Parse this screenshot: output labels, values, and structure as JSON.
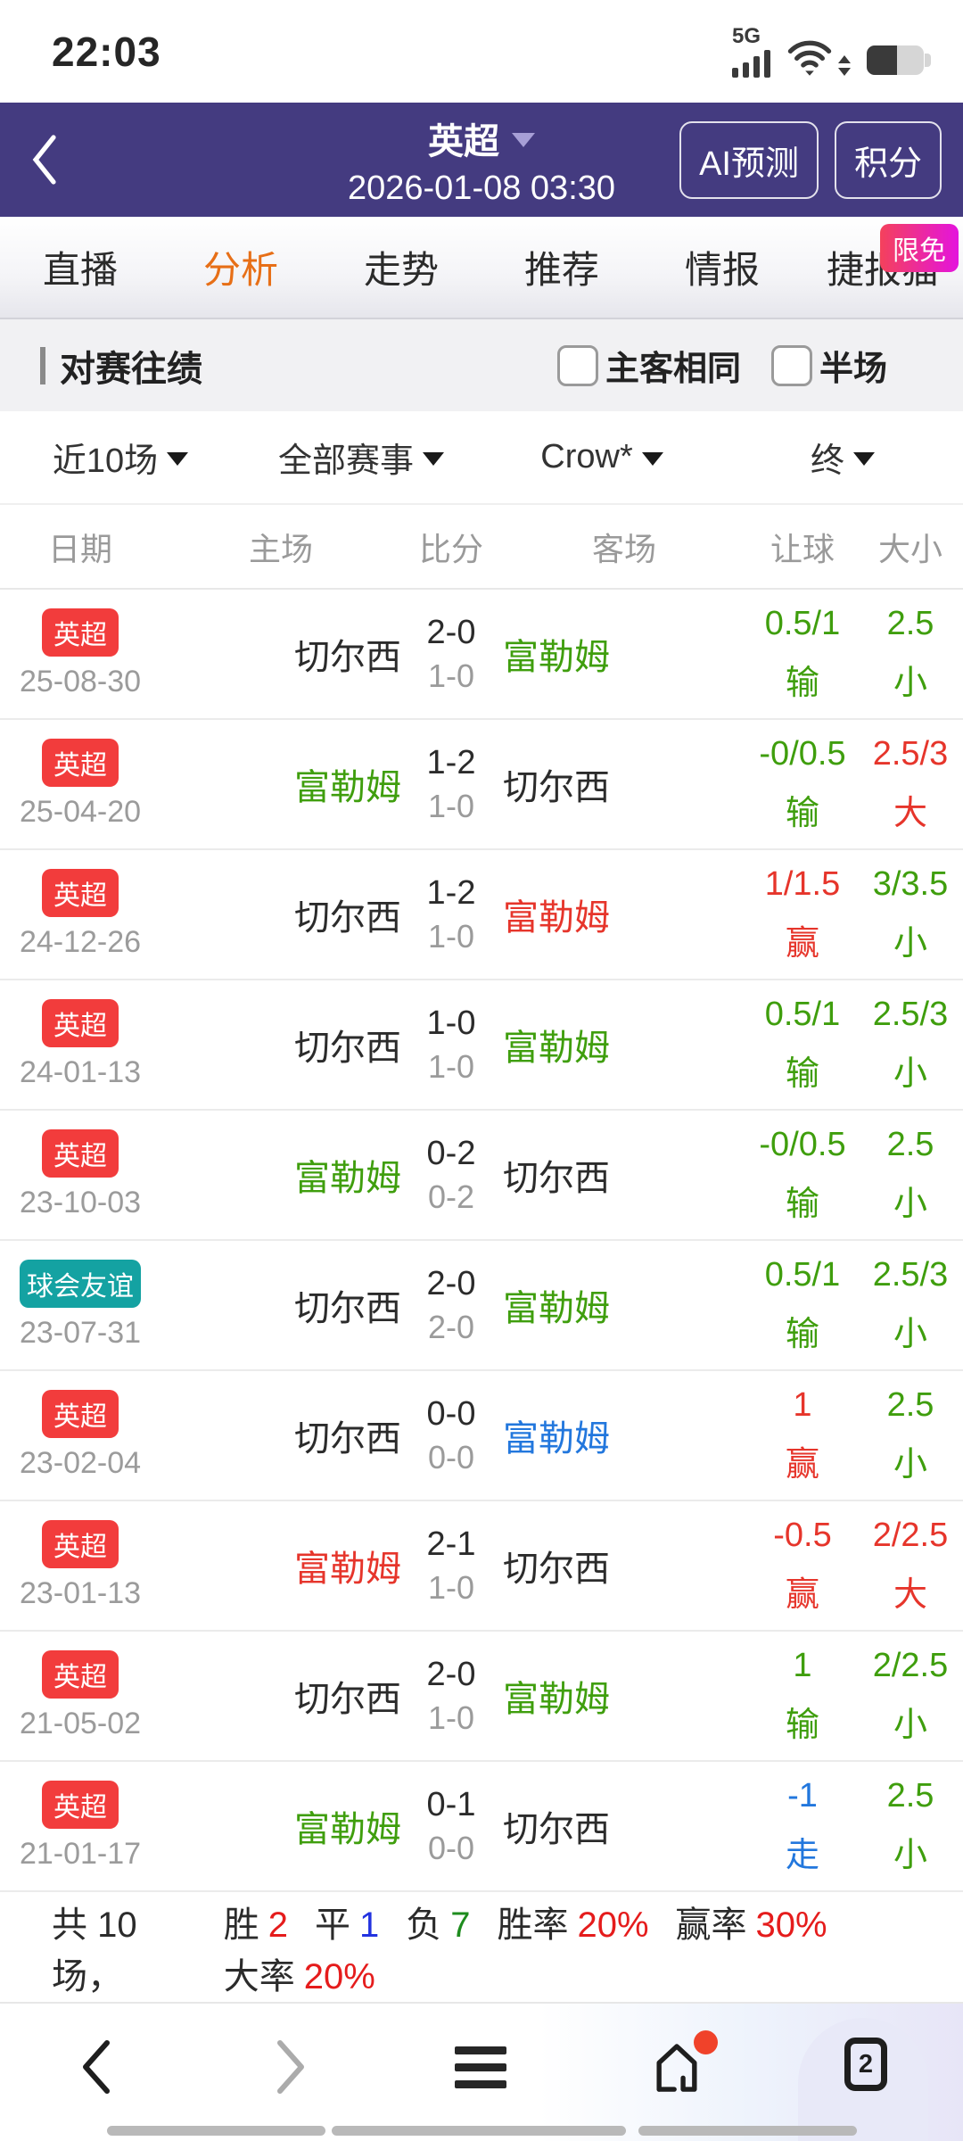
{
  "colors": {
    "green": "#3f9e0d",
    "red": "#e6352b",
    "blue": "#2277dd",
    "dark": "#2b2b2b",
    "sum_red": "#e51c1c",
    "sum_blue": "#2333e0",
    "sum_green": "#1e8c1e",
    "badge_red": "#f23c3c",
    "badge_teal": "#14a2a2",
    "accent_orange": "#e76f17",
    "header_purple": "#443b80",
    "limit_pink": "#f036b0"
  },
  "status_bar": {
    "time": "22:03",
    "network_label": "5G",
    "icons": [
      "signal-icon",
      "wifi-icon",
      "battery-icon"
    ]
  },
  "header": {
    "league": "英超",
    "kickoff": "2026-01-08 03:30",
    "buttons": [
      {
        "label": "AI预测"
      },
      {
        "label": "积分"
      }
    ]
  },
  "tabs": {
    "items": [
      "直播",
      "分析",
      "走势",
      "推荐",
      "情报",
      "捷报猫"
    ],
    "selected": "分析",
    "corner_badge": "限免"
  },
  "section": {
    "title": "对赛往绩",
    "checkboxes": [
      "主客相同",
      "半场"
    ]
  },
  "filters": [
    "近10场",
    "全部赛事",
    "Crow*",
    "终"
  ],
  "table": {
    "headers": [
      "日期",
      "主场",
      "比分",
      "客场",
      "让球",
      "大小"
    ],
    "rows": [
      {
        "league": "英超",
        "league_type": "red",
        "date": "25-08-30",
        "home": "切尔西",
        "home_color": "dark",
        "score": "2-0",
        "half": "1-0",
        "away": "富勒姆",
        "away_color": "green",
        "handicap": "0.5/1",
        "handicap_result": "输",
        "handicap_color": "green",
        "ou": "2.5",
        "ou_result": "小",
        "ou_color": "green"
      },
      {
        "league": "英超",
        "league_type": "red",
        "date": "25-04-20",
        "home": "富勒姆",
        "home_color": "green",
        "score": "1-2",
        "half": "1-0",
        "away": "切尔西",
        "away_color": "dark",
        "handicap": "-0/0.5",
        "handicap_result": "输",
        "handicap_color": "green",
        "ou": "2.5/3",
        "ou_result": "大",
        "ou_color": "red"
      },
      {
        "league": "英超",
        "league_type": "red",
        "date": "24-12-26",
        "home": "切尔西",
        "home_color": "dark",
        "score": "1-2",
        "half": "1-0",
        "away": "富勒姆",
        "away_color": "red",
        "handicap": "1/1.5",
        "handicap_result": "赢",
        "handicap_color": "red",
        "ou": "3/3.5",
        "ou_result": "小",
        "ou_color": "green"
      },
      {
        "league": "英超",
        "league_type": "red",
        "date": "24-01-13",
        "home": "切尔西",
        "home_color": "dark",
        "score": "1-0",
        "half": "1-0",
        "away": "富勒姆",
        "away_color": "green",
        "handicap": "0.5/1",
        "handicap_result": "输",
        "handicap_color": "green",
        "ou": "2.5/3",
        "ou_result": "小",
        "ou_color": "green"
      },
      {
        "league": "英超",
        "league_type": "red",
        "date": "23-10-03",
        "home": "富勒姆",
        "home_color": "green",
        "score": "0-2",
        "half": "0-2",
        "away": "切尔西",
        "away_color": "dark",
        "handicap": "-0/0.5",
        "handicap_result": "输",
        "handicap_color": "green",
        "ou": "2.5",
        "ou_result": "小",
        "ou_color": "green"
      },
      {
        "league": "球会友谊",
        "league_type": "teal",
        "date": "23-07-31",
        "home": "切尔西",
        "home_color": "dark",
        "score": "2-0",
        "half": "2-0",
        "away": "富勒姆",
        "away_color": "green",
        "handicap": "0.5/1",
        "handicap_result": "输",
        "handicap_color": "green",
        "ou": "2.5/3",
        "ou_result": "小",
        "ou_color": "green"
      },
      {
        "league": "英超",
        "league_type": "red",
        "date": "23-02-04",
        "home": "切尔西",
        "home_color": "dark",
        "score": "0-0",
        "half": "0-0",
        "away": "富勒姆",
        "away_color": "blue",
        "handicap": "1",
        "handicap_result": "赢",
        "handicap_color": "red",
        "ou": "2.5",
        "ou_result": "小",
        "ou_color": "green"
      },
      {
        "league": "英超",
        "league_type": "red",
        "date": "23-01-13",
        "home": "富勒姆",
        "home_color": "red",
        "score": "2-1",
        "half": "1-0",
        "away": "切尔西",
        "away_color": "dark",
        "handicap": "-0.5",
        "handicap_result": "赢",
        "handicap_color": "red",
        "ou": "2/2.5",
        "ou_result": "大",
        "ou_color": "red"
      },
      {
        "league": "英超",
        "league_type": "red",
        "date": "21-05-02",
        "home": "切尔西",
        "home_color": "dark",
        "score": "2-0",
        "half": "1-0",
        "away": "富勒姆",
        "away_color": "green",
        "handicap": "1",
        "handicap_result": "输",
        "handicap_color": "green",
        "ou": "2/2.5",
        "ou_result": "小",
        "ou_color": "green"
      },
      {
        "league": "英超",
        "league_type": "red",
        "date": "21-01-17",
        "home": "富勒姆",
        "home_color": "green",
        "score": "0-1",
        "half": "0-0",
        "away": "切尔西",
        "away_color": "dark",
        "handicap": "-1",
        "handicap_result": "走",
        "handicap_color": "blue",
        "ou": "2.5",
        "ou_result": "小",
        "ou_color": "green"
      }
    ]
  },
  "summary": {
    "prefix": "共 10 场，",
    "items": [
      {
        "label": "胜",
        "value": "2",
        "color": "sum_red"
      },
      {
        "label": "平",
        "value": "1",
        "color": "sum_blue"
      },
      {
        "label": "负",
        "value": "7",
        "color": "sum_green"
      },
      {
        "label": "胜率",
        "value": "20%",
        "color": "sum_red"
      },
      {
        "label": "赢率",
        "value": "30%",
        "color": "sum_red"
      },
      {
        "label": "大率",
        "value": "20%",
        "color": "sum_red"
      }
    ]
  },
  "nav": {
    "tab_count": "2",
    "icons": [
      "back-icon",
      "forward-icon",
      "menu-icon",
      "home-icon",
      "tabs-icon"
    ]
  }
}
